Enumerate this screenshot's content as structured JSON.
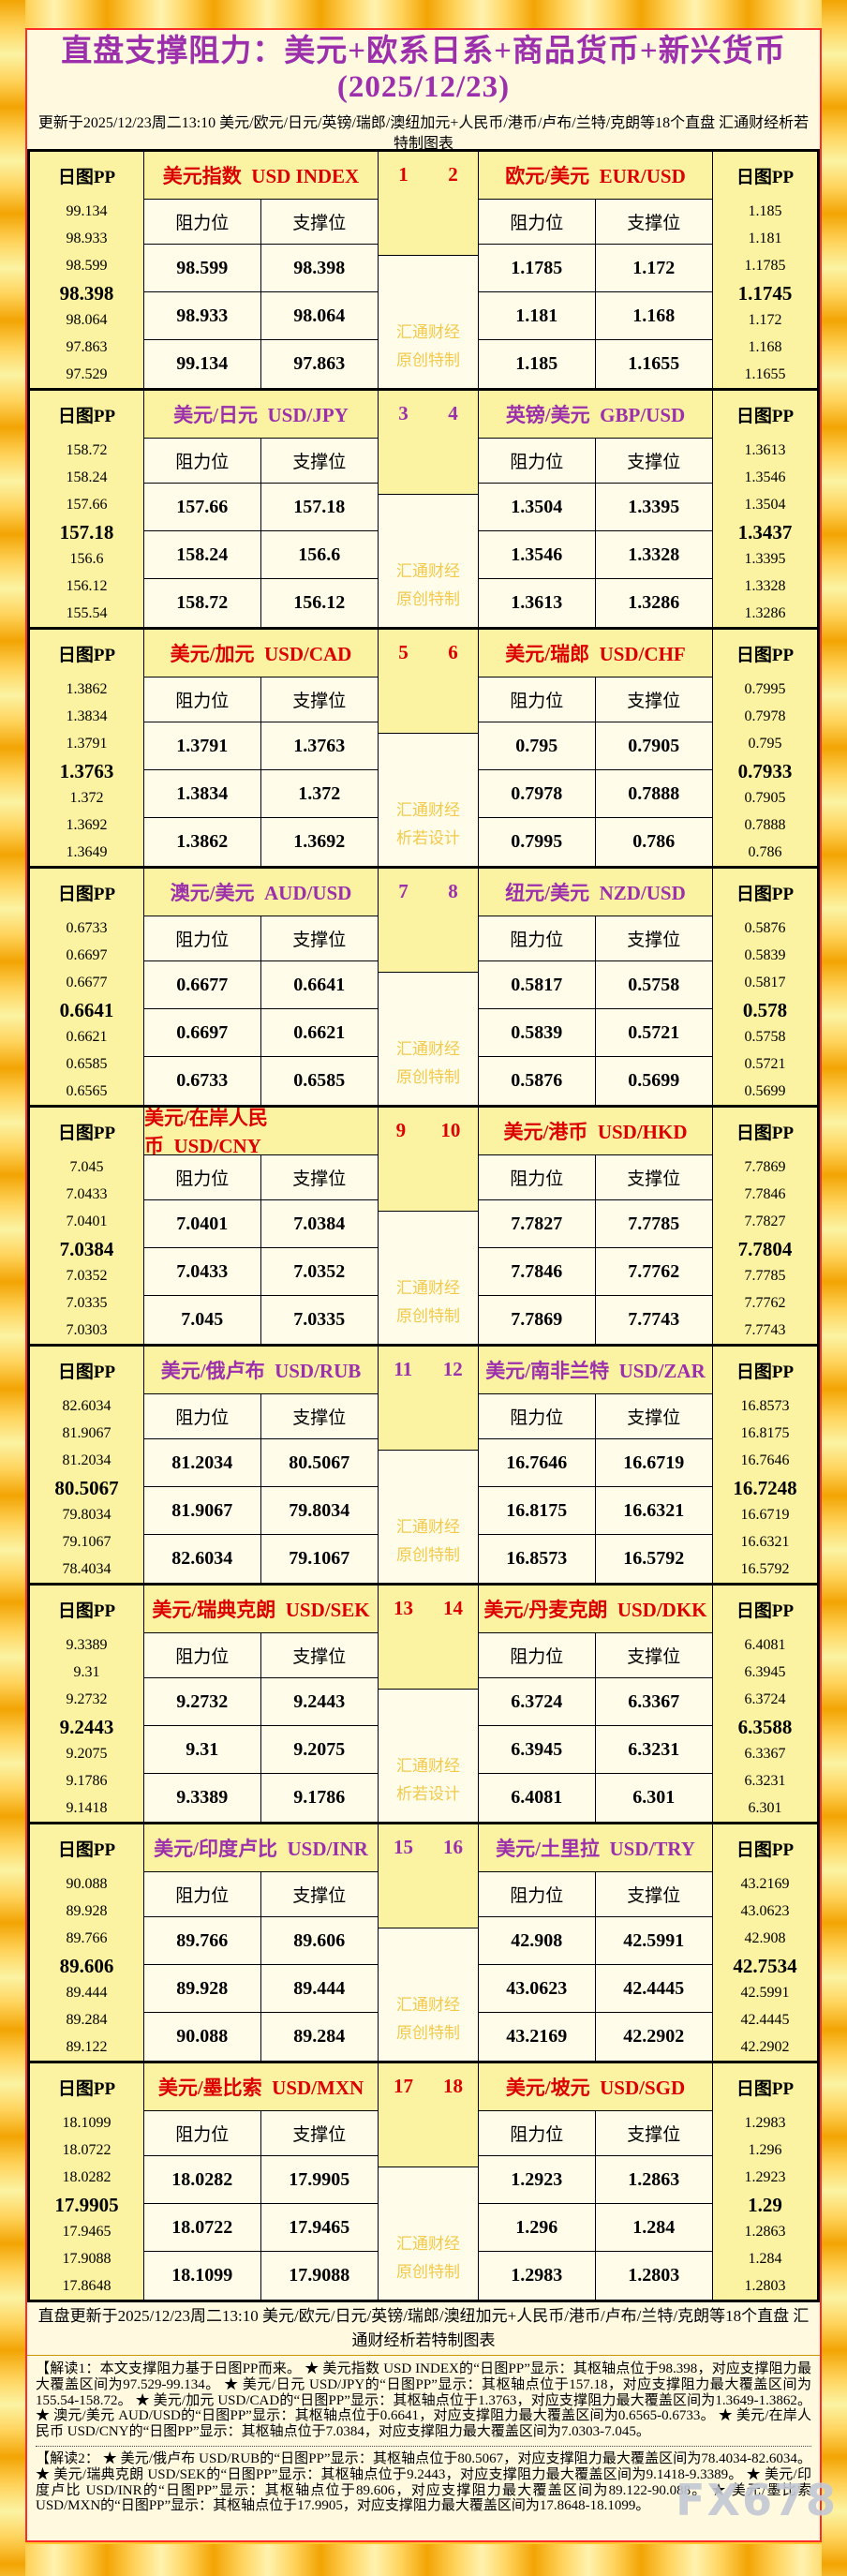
{
  "title": "直盘支撑阻力：美元+欧系日系+商品货币+新兴货币(2025/12/23)",
  "subtitle": "更新于2025/12/23周二13:10 美元/欧元/日元/英镑/瑞郎/澳纽加元+人民币/港币/卢布/兰特/克朗等18个直盘 汇通财经析若特制图表",
  "footer_line": "直盘更新于2025/12/23周二13:10 美元/欧元/日元/英镑/瑞郎/澳纽加元+人民币/港币/卢布/兰特/克朗等18个直盘 汇通财经析若特制图表",
  "labels": {
    "pp_header": "日图PP",
    "resistance": "阻力位",
    "support": "支撑位"
  },
  "colors": {
    "red": "#DD0000",
    "purple": "#9C30AC",
    "yellow_bg": "#FBF3A2",
    "cream_bg": "#FFFDE9",
    "panel_bg": "#FFF9E0",
    "border_red": "#FF2A2A",
    "watermark_gold": "#F2C94C"
  },
  "watermark_fx678": "FX678",
  "blocks": [
    {
      "accent": "red",
      "num_left": "1",
      "num_right": "2",
      "left_zh": "美元指数",
      "left_en": "USD INDEX",
      "right_zh": "欧元/美元",
      "right_en": "EUR/USD",
      "watermark": [
        "汇通财经",
        "原创特制"
      ],
      "left_pp": [
        "99.134",
        "98.933",
        "98.599",
        "98.398",
        "98.064",
        "97.863",
        "97.529"
      ],
      "left_rows": [
        [
          "98.599",
          "98.398"
        ],
        [
          "98.933",
          "98.064"
        ],
        [
          "99.134",
          "97.863"
        ]
      ],
      "right_rows": [
        [
          "1.1785",
          "1.172"
        ],
        [
          "1.181",
          "1.168"
        ],
        [
          "1.185",
          "1.1655"
        ]
      ],
      "right_pp": [
        "1.185",
        "1.181",
        "1.1785",
        "1.1745",
        "1.172",
        "1.168",
        "1.1655"
      ]
    },
    {
      "accent": "purple",
      "num_left": "3",
      "num_right": "4",
      "left_zh": "美元/日元",
      "left_en": "USD/JPY",
      "right_zh": "英镑/美元",
      "right_en": "GBP/USD",
      "watermark": [
        "汇通财经",
        "原创特制"
      ],
      "left_pp": [
        "158.72",
        "158.24",
        "157.66",
        "157.18",
        "156.6",
        "156.12",
        "155.54"
      ],
      "left_rows": [
        [
          "157.66",
          "157.18"
        ],
        [
          "158.24",
          "156.6"
        ],
        [
          "158.72",
          "156.12"
        ]
      ],
      "right_rows": [
        [
          "1.3504",
          "1.3395"
        ],
        [
          "1.3546",
          "1.3328"
        ],
        [
          "1.3613",
          "1.3286"
        ]
      ],
      "right_pp": [
        "1.3613",
        "1.3546",
        "1.3504",
        "1.3437",
        "1.3395",
        "1.3328",
        "1.3286"
      ]
    },
    {
      "accent": "red",
      "num_left": "5",
      "num_right": "6",
      "left_zh": "美元/加元",
      "left_en": "USD/CAD",
      "right_zh": "美元/瑞郎",
      "right_en": "USD/CHF",
      "watermark": [
        "汇通财经",
        "析若设计"
      ],
      "left_pp": [
        "1.3862",
        "1.3834",
        "1.3791",
        "1.3763",
        "1.372",
        "1.3692",
        "1.3649"
      ],
      "left_rows": [
        [
          "1.3791",
          "1.3763"
        ],
        [
          "1.3834",
          "1.372"
        ],
        [
          "1.3862",
          "1.3692"
        ]
      ],
      "right_rows": [
        [
          "0.795",
          "0.7905"
        ],
        [
          "0.7978",
          "0.7888"
        ],
        [
          "0.7995",
          "0.786"
        ]
      ],
      "right_pp": [
        "0.7995",
        "0.7978",
        "0.795",
        "0.7933",
        "0.7905",
        "0.7888",
        "0.786"
      ]
    },
    {
      "accent": "purple",
      "num_left": "7",
      "num_right": "8",
      "left_zh": "澳元/美元",
      "left_en": "AUD/USD",
      "right_zh": "纽元/美元",
      "right_en": "NZD/USD",
      "watermark": [
        "汇通财经",
        "原创特制"
      ],
      "left_pp": [
        "0.6733",
        "0.6697",
        "0.6677",
        "0.6641",
        "0.6621",
        "0.6585",
        "0.6565"
      ],
      "left_rows": [
        [
          "0.6677",
          "0.6641"
        ],
        [
          "0.6697",
          "0.6621"
        ],
        [
          "0.6733",
          "0.6585"
        ]
      ],
      "right_rows": [
        [
          "0.5817",
          "0.5758"
        ],
        [
          "0.5839",
          "0.5721"
        ],
        [
          "0.5876",
          "0.5699"
        ]
      ],
      "right_pp": [
        "0.5876",
        "0.5839",
        "0.5817",
        "0.578",
        "0.5758",
        "0.5721",
        "0.5699"
      ]
    },
    {
      "accent": "red",
      "num_left": "9",
      "num_right": "10",
      "left_zh": "美元/在岸人民币",
      "left_en": "USD/CNY",
      "right_zh": "美元/港币",
      "right_en": "USD/HKD",
      "watermark": [
        "汇通财经",
        "原创特制"
      ],
      "left_pp": [
        "7.045",
        "7.0433",
        "7.0401",
        "7.0384",
        "7.0352",
        "7.0335",
        "7.0303"
      ],
      "left_rows": [
        [
          "7.0401",
          "7.0384"
        ],
        [
          "7.0433",
          "7.0352"
        ],
        [
          "7.045",
          "7.0335"
        ]
      ],
      "right_rows": [
        [
          "7.7827",
          "7.7785"
        ],
        [
          "7.7846",
          "7.7762"
        ],
        [
          "7.7869",
          "7.7743"
        ]
      ],
      "right_pp": [
        "7.7869",
        "7.7846",
        "7.7827",
        "7.7804",
        "7.7785",
        "7.7762",
        "7.7743"
      ]
    },
    {
      "accent": "purple",
      "num_left": "11",
      "num_right": "12",
      "left_zh": "美元/俄卢布",
      "left_en": "USD/RUB",
      "right_zh": "美元/南非兰特",
      "right_en": "USD/ZAR",
      "watermark": [
        "汇通财经",
        "原创特制"
      ],
      "left_pp": [
        "82.6034",
        "81.9067",
        "81.2034",
        "80.5067",
        "79.8034",
        "79.1067",
        "78.4034"
      ],
      "left_rows": [
        [
          "81.2034",
          "80.5067"
        ],
        [
          "81.9067",
          "79.8034"
        ],
        [
          "82.6034",
          "79.1067"
        ]
      ],
      "right_rows": [
        [
          "16.7646",
          "16.6719"
        ],
        [
          "16.8175",
          "16.6321"
        ],
        [
          "16.8573",
          "16.5792"
        ]
      ],
      "right_pp": [
        "16.8573",
        "16.8175",
        "16.7646",
        "16.7248",
        "16.6719",
        "16.6321",
        "16.5792"
      ]
    },
    {
      "accent": "red",
      "num_left": "13",
      "num_right": "14",
      "left_zh": "美元/瑞典克朗",
      "left_en": "USD/SEK",
      "right_zh": "美元/丹麦克朗",
      "right_en": "USD/DKK",
      "watermark": [
        "汇通财经",
        "析若设计"
      ],
      "left_pp": [
        "9.3389",
        "9.31",
        "9.2732",
        "9.2443",
        "9.2075",
        "9.1786",
        "9.1418"
      ],
      "left_rows": [
        [
          "9.2732",
          "9.2443"
        ],
        [
          "9.31",
          "9.2075"
        ],
        [
          "9.3389",
          "9.1786"
        ]
      ],
      "right_rows": [
        [
          "6.3724",
          "6.3367"
        ],
        [
          "6.3945",
          "6.3231"
        ],
        [
          "6.4081",
          "6.301"
        ]
      ],
      "right_pp": [
        "6.4081",
        "6.3945",
        "6.3724",
        "6.3588",
        "6.3367",
        "6.3231",
        "6.301"
      ]
    },
    {
      "accent": "purple",
      "num_left": "15",
      "num_right": "16",
      "left_zh": "美元/印度卢比",
      "left_en": "USD/INR",
      "right_zh": "美元/土里拉",
      "right_en": "USD/TRY",
      "watermark": [
        "汇通财经",
        "原创特制"
      ],
      "left_pp": [
        "90.088",
        "89.928",
        "89.766",
        "89.606",
        "89.444",
        "89.284",
        "89.122"
      ],
      "left_rows": [
        [
          "89.766",
          "89.606"
        ],
        [
          "89.928",
          "89.444"
        ],
        [
          "90.088",
          "89.284"
        ]
      ],
      "right_rows": [
        [
          "42.908",
          "42.5991"
        ],
        [
          "43.0623",
          "42.4445"
        ],
        [
          "43.2169",
          "42.2902"
        ]
      ],
      "right_pp": [
        "43.2169",
        "43.0623",
        "42.908",
        "42.7534",
        "42.5991",
        "42.4445",
        "42.2902"
      ]
    },
    {
      "accent": "red",
      "num_left": "17",
      "num_right": "18",
      "left_zh": "美元/墨比索",
      "left_en": "USD/MXN",
      "right_zh": "美元/坡元",
      "right_en": "USD/SGD",
      "watermark": [
        "汇通财经",
        "原创特制"
      ],
      "left_pp": [
        "18.1099",
        "18.0722",
        "18.0282",
        "17.9905",
        "17.9465",
        "17.9088",
        "17.8648"
      ],
      "left_rows": [
        [
          "18.0282",
          "17.9905"
        ],
        [
          "18.0722",
          "17.9465"
        ],
        [
          "18.1099",
          "17.9088"
        ]
      ],
      "right_rows": [
        [
          "1.2923",
          "1.2863"
        ],
        [
          "1.296",
          "1.284"
        ],
        [
          "1.2983",
          "1.2803"
        ]
      ],
      "right_pp": [
        "1.2983",
        "1.296",
        "1.2923",
        "1.29",
        "1.2863",
        "1.284",
        "1.2803"
      ]
    }
  ],
  "notes": {
    "note1": "【解读1：本文支撑阻力基于日图PP而来。 ★ 美元指数 USD INDEX的“日图PP”显示：其枢轴点位于98.398，对应支撑阻力最大覆盖区间为97.529-99.134。 ★ 美元/日元 USD/JPY的“日图PP”显示：其枢轴点位于157.18，对应支撑阻力最大覆盖区间为155.54-158.72。 ★ 美元/加元 USD/CAD的“日图PP”显示：其枢轴点位于1.3763，对应支撑阻力最大覆盖区间为1.3649-1.3862。 ★ 澳元/美元 AUD/USD的“日图PP”显示：其枢轴点位于0.6641，对应支撑阻力最大覆盖区间为0.6565-0.6733。 ★ 美元/在岸人民币 USD/CNY的“日图PP”显示：其枢轴点位于7.0384，对应支撑阻力最大覆盖区间为7.0303-7.045。",
    "note2": "【解读2： ★ 美元/俄卢布 USD/RUB的“日图PP”显示：其枢轴点位于80.5067，对应支撑阻力最大覆盖区间为78.4034-82.6034。 ★ 美元/瑞典克朗 USD/SEK的“日图PP”显示：其枢轴点位于9.2443，对应支撑阻力最大覆盖区间为9.1418-9.3389。 ★ 美元/印度卢比 USD/INR的“日图PP”显示：其枢轴点位于89.606，对应支撑阻力最大覆盖区间为89.122-90.088。 ★ 美元/墨比索 USD/MXN的“日图PP”显示：其枢轴点位于17.9905，对应支撑阻力最大覆盖区间为17.8648-18.1099。"
  }
}
